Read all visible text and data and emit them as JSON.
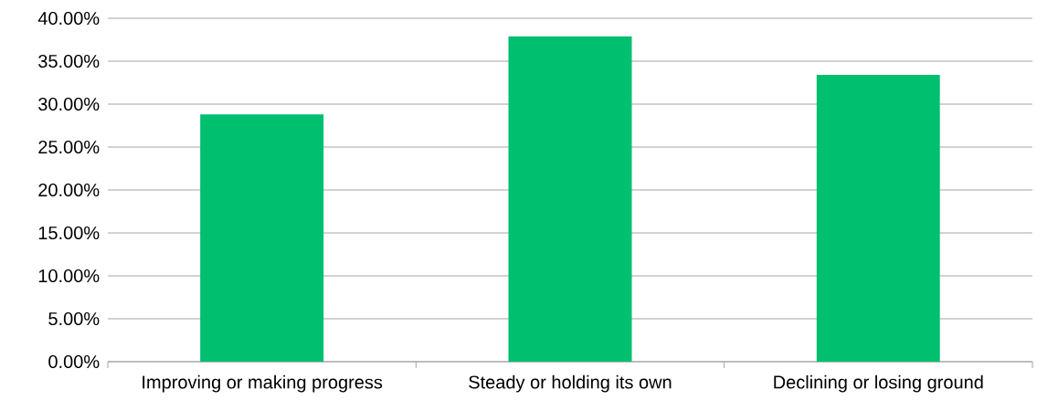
{
  "chart_data": {
    "type": "bar",
    "categories": [
      "Improving or making progress",
      "Steady or holding its own",
      "Declining or losing ground"
    ],
    "values": [
      28.8,
      37.9,
      33.4
    ],
    "color": "#00bf6f",
    "ylim": [
      0,
      40
    ],
    "yticks": [
      {
        "value": 0,
        "label": "0.00%"
      },
      {
        "value": 5,
        "label": "5.00%"
      },
      {
        "value": 10,
        "label": "10.00%"
      },
      {
        "value": 15,
        "label": "15.00%"
      },
      {
        "value": 20,
        "label": "20.00%"
      },
      {
        "value": 25,
        "label": "25.00%"
      },
      {
        "value": 30,
        "label": "30.00%"
      },
      {
        "value": 35,
        "label": "35.00%"
      },
      {
        "value": 40,
        "label": "40.00%"
      }
    ],
    "grid": "y"
  }
}
